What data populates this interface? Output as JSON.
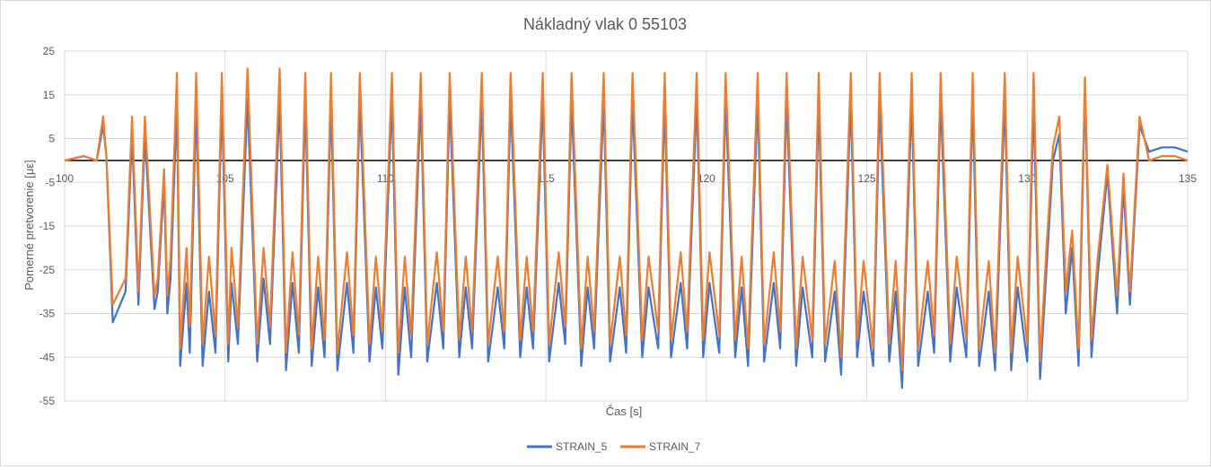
{
  "chart_data": {
    "type": "line",
    "title": "Nákladný vlak 0 55103",
    "xlabel": "Čas [s]",
    "ylabel": "Pomerné pretvorenie [με]",
    "xlim": [
      100,
      135
    ],
    "ylim": [
      -55,
      25
    ],
    "x_ticks": [
      "100",
      "105",
      "110",
      "115",
      "120",
      "125",
      "130",
      "135"
    ],
    "y_ticks": [
      "25",
      "15",
      "5",
      "-5",
      "-15",
      "-25",
      "-35",
      "-45",
      "-55"
    ],
    "grid": true,
    "legend_position": "bottom",
    "series": [
      {
        "name": "STRAIN_5",
        "color": "#4472c4",
        "x": [
          100.0,
          100.6,
          101.0,
          101.2,
          101.3,
          101.5,
          101.9,
          102.1,
          102.3,
          102.5,
          102.8,
          102.9,
          103.1,
          103.2,
          103.3,
          103.5,
          103.6,
          103.8,
          103.9,
          104.1,
          104.3,
          104.5,
          104.7,
          104.9,
          105.1,
          105.2,
          105.4,
          105.7,
          106.0,
          106.2,
          106.4,
          106.7,
          106.9,
          107.1,
          107.3,
          107.5,
          107.7,
          107.9,
          108.1,
          108.3,
          108.5,
          108.8,
          109.0,
          109.2,
          109.5,
          109.7,
          109.9,
          110.2,
          110.4,
          110.6,
          110.8,
          111.1,
          111.3,
          111.6,
          111.8,
          112.0,
          112.3,
          112.5,
          112.7,
          113.0,
          113.2,
          113.5,
          113.7,
          113.9,
          114.2,
          114.4,
          114.6,
          114.9,
          115.1,
          115.4,
          115.6,
          115.8,
          116.1,
          116.3,
          116.5,
          116.8,
          117.0,
          117.3,
          117.5,
          117.7,
          118.0,
          118.2,
          118.5,
          118.7,
          118.9,
          119.2,
          119.4,
          119.7,
          119.9,
          120.1,
          120.4,
          120.6,
          120.9,
          121.1,
          121.3,
          121.6,
          121.8,
          122.1,
          122.3,
          122.5,
          122.8,
          123.0,
          123.3,
          123.5,
          123.7,
          124.0,
          124.2,
          124.5,
          124.7,
          124.9,
          125.2,
          125.4,
          125.7,
          125.9,
          126.1,
          126.4,
          126.6,
          126.9,
          127.1,
          127.3,
          127.6,
          127.8,
          128.1,
          128.3,
          128.5,
          128.8,
          129.0,
          129.3,
          129.5,
          129.7,
          130.0,
          130.2,
          130.4,
          130.6,
          130.8,
          131.0,
          131.2,
          131.4,
          131.6,
          131.8,
          132.0,
          132.2,
          132.5,
          132.8,
          133.0,
          133.2,
          133.5,
          133.8,
          134.2,
          134.6,
          135.0
        ],
        "values": [
          0,
          1,
          0,
          8,
          1,
          -37,
          -30,
          6,
          -33,
          6,
          -34,
          -30,
          -5,
          -35,
          -27,
          13,
          -47,
          -28,
          -44,
          13,
          -47,
          -30,
          -44,
          14,
          -46,
          -28,
          -42,
          14,
          -46,
          -27,
          -42,
          14,
          -48,
          -28,
          -44,
          14,
          -47,
          -29,
          -45,
          14,
          -48,
          -28,
          -44,
          14,
          -46,
          -29,
          -43,
          14,
          -49,
          -29,
          -45,
          14,
          -46,
          -28,
          -43,
          14,
          -45,
          -29,
          -43,
          14,
          -46,
          -29,
          -43,
          14,
          -45,
          -29,
          -43,
          14,
          -46,
          -28,
          -42,
          14,
          -47,
          -29,
          -43,
          14,
          -46,
          -29,
          -44,
          14,
          -45,
          -29,
          -43,
          14,
          -45,
          -28,
          -43,
          14,
          -45,
          -28,
          -44,
          14,
          -45,
          -29,
          -47,
          14,
          -46,
          -28,
          -43,
          14,
          -47,
          -29,
          -45,
          14,
          -46,
          -30,
          -49,
          14,
          -45,
          -30,
          -47,
          14,
          -46,
          -30,
          -52,
          14,
          -47,
          -30,
          -44,
          14,
          -46,
          -29,
          -45,
          14,
          -47,
          -30,
          -48,
          14,
          -48,
          -29,
          -46,
          14,
          -50,
          -25,
          0,
          6,
          -35,
          -20,
          -47,
          16,
          -45,
          -26,
          -3,
          -35,
          -6,
          -33,
          8,
          2,
          3,
          3,
          2
        ]
      },
      {
        "name": "STRAIN_7",
        "color": "#ed7d31",
        "x": [
          100.0,
          100.6,
          101.0,
          101.2,
          101.3,
          101.5,
          101.9,
          102.1,
          102.3,
          102.5,
          102.8,
          102.9,
          103.1,
          103.2,
          103.3,
          103.5,
          103.6,
          103.8,
          103.9,
          104.1,
          104.3,
          104.5,
          104.7,
          104.9,
          105.1,
          105.2,
          105.4,
          105.7,
          106.0,
          106.2,
          106.4,
          106.7,
          106.9,
          107.1,
          107.3,
          107.5,
          107.7,
          107.9,
          108.1,
          108.3,
          108.5,
          108.8,
          109.0,
          109.2,
          109.5,
          109.7,
          109.9,
          110.2,
          110.4,
          110.6,
          110.8,
          111.1,
          111.3,
          111.6,
          111.8,
          112.0,
          112.3,
          112.5,
          112.7,
          113.0,
          113.2,
          113.5,
          113.7,
          113.9,
          114.2,
          114.4,
          114.6,
          114.9,
          115.1,
          115.4,
          115.6,
          115.8,
          116.1,
          116.3,
          116.5,
          116.8,
          117.0,
          117.3,
          117.5,
          117.7,
          118.0,
          118.2,
          118.5,
          118.7,
          118.9,
          119.2,
          119.4,
          119.7,
          119.9,
          120.1,
          120.4,
          120.6,
          120.9,
          121.1,
          121.3,
          121.6,
          121.8,
          122.1,
          122.3,
          122.5,
          122.8,
          123.0,
          123.3,
          123.5,
          123.7,
          124.0,
          124.2,
          124.5,
          124.7,
          124.9,
          125.2,
          125.4,
          125.7,
          125.9,
          126.1,
          126.4,
          126.6,
          126.9,
          127.1,
          127.3,
          127.6,
          127.8,
          128.1,
          128.3,
          128.5,
          128.8,
          129.0,
          129.3,
          129.5,
          129.7,
          130.0,
          130.2,
          130.4,
          130.6,
          130.8,
          131.0,
          131.2,
          131.4,
          131.6,
          131.8,
          132.0,
          132.2,
          132.5,
          132.8,
          133.0,
          133.2,
          133.5,
          133.8,
          134.2,
          134.6,
          135.0
        ],
        "values": [
          0,
          1,
          0,
          10,
          1,
          -33,
          -27,
          10,
          -30,
          10,
          -31,
          -27,
          -2,
          -31,
          -22,
          20,
          -43,
          -20,
          -38,
          20,
          -42,
          -22,
          -40,
          20,
          -42,
          -20,
          -38,
          21,
          -42,
          -20,
          -38,
          21,
          -44,
          -21,
          -40,
          20,
          -43,
          -22,
          -41,
          20,
          -44,
          -21,
          -40,
          20,
          -42,
          -22,
          -39,
          20,
          -44,
          -22,
          -40,
          20,
          -42,
          -21,
          -39,
          20,
          -41,
          -22,
          -39,
          20,
          -42,
          -22,
          -39,
          20,
          -41,
          -22,
          -39,
          20,
          -42,
          -21,
          -38,
          20,
          -43,
          -22,
          -39,
          20,
          -42,
          -22,
          -40,
          20,
          -41,
          -22,
          -39,
          20,
          -41,
          -21,
          -39,
          20,
          -41,
          -21,
          -40,
          20,
          -41,
          -22,
          -43,
          20,
          -42,
          -21,
          -39,
          20,
          -43,
          -22,
          -41,
          20,
          -42,
          -23,
          -45,
          20,
          -41,
          -23,
          -43,
          20,
          -42,
          -23,
          -48,
          20,
          -43,
          -23,
          -40,
          20,
          -42,
          -22,
          -41,
          20,
          -43,
          -23,
          -44,
          20,
          -44,
          -22,
          -42,
          20,
          -46,
          -20,
          3,
          10,
          -30,
          -16,
          -43,
          19,
          -41,
          -22,
          -1,
          -31,
          -3,
          -30,
          10,
          0,
          1,
          1,
          0
        ]
      }
    ]
  }
}
